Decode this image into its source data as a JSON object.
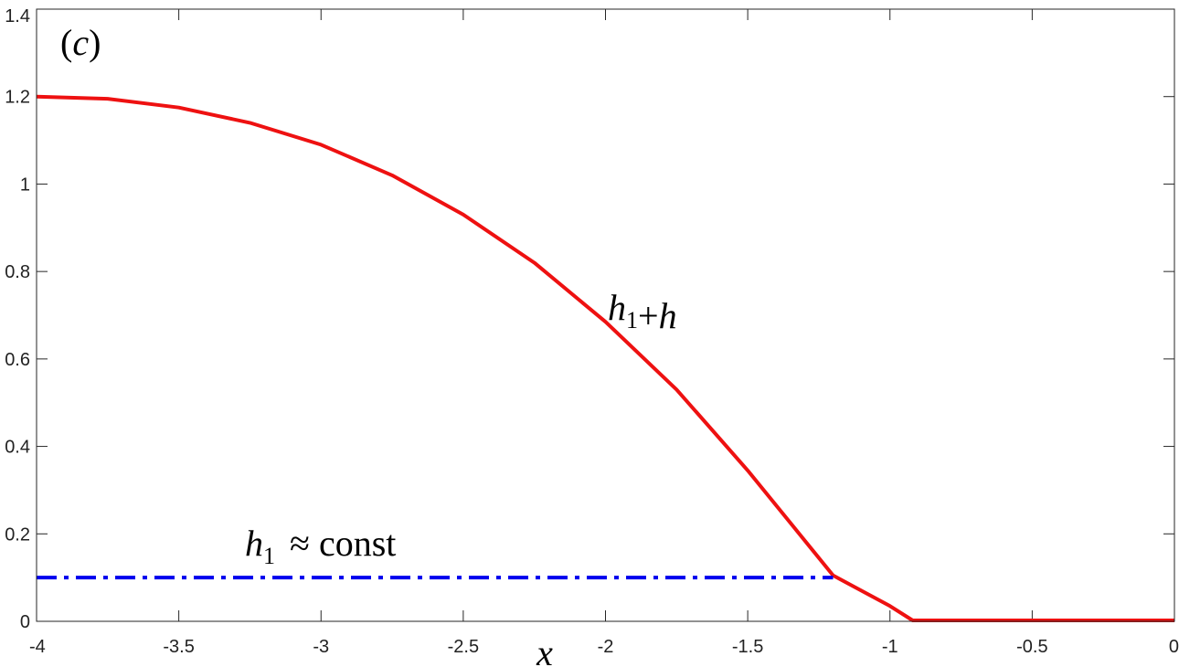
{
  "chart_data": {
    "type": "line",
    "xlabel": "x",
    "xlim": [
      -4,
      0
    ],
    "ylim": [
      0,
      1.4
    ],
    "x_ticks": [
      -4,
      -3.5,
      -3,
      -2.5,
      -2,
      -1.5,
      -1,
      -0.5,
      0
    ],
    "y_ticks": [
      0,
      0.2,
      0.4,
      0.6,
      0.8,
      1,
      1.2,
      1.4
    ],
    "x_tick_labels": [
      "-4",
      "-3.5",
      "-3",
      "-2.5",
      "-2",
      "-1.5",
      "-1",
      "-0.5",
      "0"
    ],
    "y_tick_labels": [
      "0",
      "0.2",
      "0.4",
      "0.6",
      "0.8",
      "1",
      "1.2",
      "1.4"
    ],
    "grid": false,
    "panel_label": {
      "open": "(",
      "letter": "c",
      "close": ")"
    },
    "series": [
      {
        "color": "#ee1111",
        "style": "solid",
        "annotation": {
          "base": "h",
          "sub": "1",
          "rest": "+h"
        },
        "x": [
          -4,
          -3.75,
          -3.5,
          -3.25,
          -3,
          -2.75,
          -2.5,
          -2.25,
          -2,
          -1.75,
          -1.5,
          -1.35,
          -1.2,
          -1.1,
          -1.0,
          -0.92,
          -0.5,
          0
        ],
        "y": [
          1.2,
          1.195,
          1.175,
          1.14,
          1.09,
          1.02,
          0.93,
          0.82,
          0.685,
          0.53,
          0.345,
          0.225,
          0.105,
          0.07,
          0.035,
          0.002,
          0.002,
          0.002
        ]
      },
      {
        "color": "#0000ee",
        "style": "dash-dot",
        "annotation": {
          "base": "h",
          "sub": "1",
          "rest": "≈ const"
        },
        "x": [
          -4,
          -1.2
        ],
        "y": [
          0.1,
          0.1
        ]
      }
    ]
  }
}
